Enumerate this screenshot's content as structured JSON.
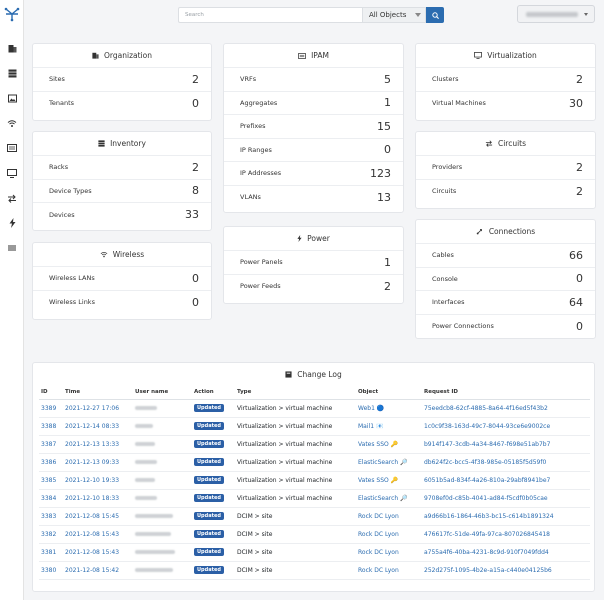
{
  "search": {
    "placeholder": "Search",
    "scope": "All Objects"
  },
  "colors": {
    "accent": "#2b6cb0",
    "badge": "#2b5fa6"
  },
  "sidebar": {
    "icons": [
      "logo-icon",
      "building-icon",
      "rack-icon",
      "image-icon",
      "wifi-icon",
      "ipam-icon",
      "monitor-icon",
      "circuits-icon",
      "power-icon",
      "connections-icon"
    ]
  },
  "organization": {
    "title": "Organization",
    "rows": [
      {
        "label": "Sites",
        "value": "2"
      },
      {
        "label": "Tenants",
        "value": "0"
      }
    ]
  },
  "ipam": {
    "title": "IPAM",
    "rows": [
      {
        "label": "VRFs",
        "value": "5"
      },
      {
        "label": "Aggregates",
        "value": "1"
      },
      {
        "label": "Prefixes",
        "value": "15"
      },
      {
        "label": "IP Ranges",
        "value": "0"
      },
      {
        "label": "IP Addresses",
        "value": "123"
      },
      {
        "label": "VLANs",
        "value": "13"
      }
    ]
  },
  "virtualization": {
    "title": "Virtualization",
    "rows": [
      {
        "label": "Clusters",
        "value": "2"
      },
      {
        "label": "Virtual Machines",
        "value": "30"
      }
    ]
  },
  "inventory": {
    "title": "Inventory",
    "rows": [
      {
        "label": "Racks",
        "value": "2"
      },
      {
        "label": "Device Types",
        "value": "8"
      },
      {
        "label": "Devices",
        "value": "33"
      }
    ]
  },
  "circuits": {
    "title": "Circuits",
    "rows": [
      {
        "label": "Providers",
        "value": "2"
      },
      {
        "label": "Circuits",
        "value": "2"
      }
    ]
  },
  "wireless": {
    "title": "Wireless",
    "rows": [
      {
        "label": "Wireless LANs",
        "value": "0"
      },
      {
        "label": "Wireless Links",
        "value": "0"
      }
    ]
  },
  "power": {
    "title": "Power",
    "rows": [
      {
        "label": "Power Panels",
        "value": "1"
      },
      {
        "label": "Power Feeds",
        "value": "2"
      }
    ]
  },
  "connections": {
    "title": "Connections",
    "rows": [
      {
        "label": "Cables",
        "value": "66"
      },
      {
        "label": "Console",
        "value": "0"
      },
      {
        "label": "Interfaces",
        "value": "64"
      },
      {
        "label": "Power Connections",
        "value": "0"
      }
    ]
  },
  "changelog": {
    "title": "Change Log",
    "columns": [
      "ID",
      "Time",
      "User name",
      "Action",
      "Type",
      "Object",
      "Request ID"
    ],
    "rows": [
      {
        "id": "3389",
        "time": "2021-12-27 17:06",
        "action": "Updated",
        "type": "Virtualization > virtual machine",
        "object": "Web1",
        "emoji": "🔵",
        "request": "75eedcb8-62cf-4885-8a64-4f16ed5f43b2"
      },
      {
        "id": "3388",
        "time": "2021-12-14 08:33",
        "action": "Updated",
        "type": "Virtualization > virtual machine",
        "object": "Mail1",
        "emoji": "📧",
        "request": "1c0c9f38-163d-49c7-8044-93ce6e9002ce"
      },
      {
        "id": "3387",
        "time": "2021-12-13 13:33",
        "action": "Updated",
        "type": "Virtualization > virtual machine",
        "object": "Vates SSO",
        "emoji": "🔑",
        "request": "b914f147-3cdb-4a34-8467-f698e51ab7b7"
      },
      {
        "id": "3386",
        "time": "2021-12-13 09:33",
        "action": "Updated",
        "type": "Virtualization > virtual machine",
        "object": "ElasticSearch",
        "emoji": "🔎",
        "request": "db624f2c-bcc5-4f38-985e-05185f5d59f0"
      },
      {
        "id": "3385",
        "time": "2021-12-10 19:33",
        "action": "Updated",
        "type": "Virtualization > virtual machine",
        "object": "Vates SSO",
        "emoji": "🔑",
        "request": "6051b5ad-834f-4a26-810a-29abf8941be7"
      },
      {
        "id": "3384",
        "time": "2021-12-10 18:33",
        "action": "Updated",
        "type": "Virtualization > virtual machine",
        "object": "ElasticSearch",
        "emoji": "🔎",
        "request": "9708ef0d-c85b-4041-ad84-f5cdf0b05cae"
      },
      {
        "id": "3383",
        "time": "2021-12-08 15:45",
        "action": "Updated",
        "type": "DCIM > site",
        "object": "Rock DC Lyon",
        "emoji": "",
        "request": "a9d66b16-1864-46b3-bc15-c614b1891324"
      },
      {
        "id": "3382",
        "time": "2021-12-08 15:43",
        "action": "Updated",
        "type": "DCIM > site",
        "object": "Rock DC Lyon",
        "emoji": "",
        "request": "476617fc-51de-49fa-97ca-807026845418"
      },
      {
        "id": "3381",
        "time": "2021-12-08 15:43",
        "action": "Updated",
        "type": "DCIM > site",
        "object": "Rock DC Lyon",
        "emoji": "",
        "request": "a755a4f6-40ba-4231-8c9d-910f7049fdd4"
      },
      {
        "id": "3380",
        "time": "2021-12-08 15:42",
        "action": "Updated",
        "type": "DCIM > site",
        "object": "Rock DC Lyon",
        "emoji": "",
        "request": "252d275f-1095-4b2e-a15a-c440e04125b6"
      }
    ]
  }
}
